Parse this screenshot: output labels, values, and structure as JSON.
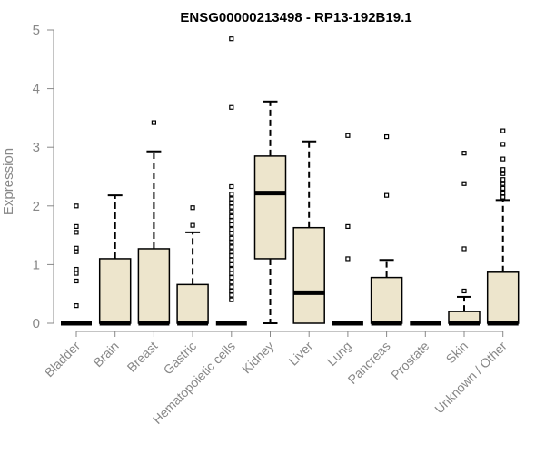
{
  "chart_data": {
    "type": "boxplot",
    "title": "ENSG00000213498 - RP13-192B19.1",
    "xlabel": "",
    "ylabel": "Expression",
    "ylim": [
      0,
      5
    ],
    "yticks": [
      "0",
      "1",
      "2",
      "3",
      "4",
      "5"
    ],
    "box_color": "#ede5cc",
    "categories": [
      "Bladder",
      "Brain",
      "Breast",
      "Gastric",
      "Hematopoietic cells",
      "Kidney",
      "Liver",
      "Lung",
      "Pancreas",
      "Prostate",
      "Skin",
      "Unknown / Other"
    ],
    "boxes": [
      {
        "name": "Bladder",
        "low": 0,
        "q1": 0,
        "median": 0,
        "q3": 0,
        "high": 0,
        "outliers": [
          2.0,
          1.65,
          1.55,
          1.28,
          1.22,
          0.92,
          0.85,
          0.72,
          0.3
        ]
      },
      {
        "name": "Brain",
        "low": 0,
        "q1": 0,
        "median": 0,
        "q3": 1.1,
        "high": 2.18,
        "outliers": []
      },
      {
        "name": "Breast",
        "low": 0,
        "q1": 0,
        "median": 0,
        "q3": 1.27,
        "high": 2.93,
        "outliers": [
          3.42
        ]
      },
      {
        "name": "Gastric",
        "low": 0,
        "q1": 0,
        "median": 0,
        "q3": 0.66,
        "high": 1.55,
        "outliers": [
          1.97,
          1.67
        ]
      },
      {
        "name": "Hematopoietic cells",
        "low": 0,
        "q1": 0,
        "median": 0,
        "q3": 0,
        "high": 0,
        "outliers": [
          4.85,
          3.68,
          2.33,
          2.2,
          2.12,
          2.05,
          1.98,
          1.9,
          1.82,
          1.75,
          1.68,
          1.6,
          1.53,
          1.45,
          1.38,
          1.3,
          1.22,
          1.15,
          1.08,
          1.0,
          0.92,
          0.85,
          0.78,
          0.7,
          0.62,
          0.55,
          0.48,
          0.4
        ]
      },
      {
        "name": "Kidney",
        "low": 0,
        "q1": 1.1,
        "median": 2.22,
        "q3": 2.85,
        "high": 3.78,
        "outliers": []
      },
      {
        "name": "Liver",
        "low": 0,
        "q1": 0,
        "median": 0.52,
        "q3": 1.63,
        "high": 3.1,
        "outliers": []
      },
      {
        "name": "Lung",
        "low": 0,
        "q1": 0,
        "median": 0,
        "q3": 0,
        "high": 0,
        "outliers": [
          3.2,
          1.65,
          1.1
        ]
      },
      {
        "name": "Pancreas",
        "low": 0,
        "q1": 0,
        "median": 0,
        "q3": 0.78,
        "high": 1.08,
        "outliers": [
          3.18,
          2.18
        ]
      },
      {
        "name": "Prostate",
        "low": 0,
        "q1": 0,
        "median": 0,
        "q3": 0,
        "high": 0,
        "outliers": []
      },
      {
        "name": "Skin",
        "low": 0,
        "q1": 0,
        "median": 0,
        "q3": 0.2,
        "high": 0.45,
        "outliers": [
          2.9,
          2.38,
          1.27,
          0.55
        ]
      },
      {
        "name": "Unknown / Other",
        "low": 0,
        "q1": 0,
        "median": 0,
        "q3": 0.87,
        "high": 2.1,
        "outliers": [
          3.28,
          3.05,
          2.8,
          2.62,
          2.55,
          2.45,
          2.38,
          2.3,
          2.22,
          2.15
        ]
      }
    ]
  }
}
